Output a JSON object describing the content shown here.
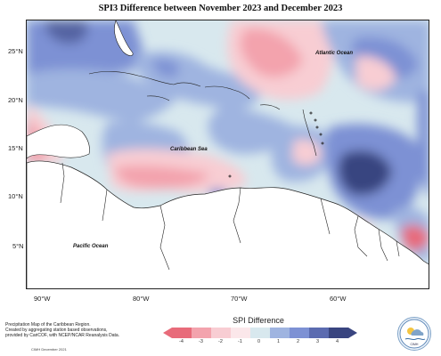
{
  "title": "SPI3 Difference between November 2023 and December 2023",
  "labels": {
    "atlantic": "Atlantic Ocean",
    "caribbean": "Caribbean Sea",
    "pacific": "Pacific Ocean"
  },
  "lat_ticks": [
    "25°N",
    "20°N",
    "15°N",
    "10°N",
    "5°N"
  ],
  "lon_ticks": [
    "90°W",
    "80°W",
    "70°W",
    "60°W"
  ],
  "legend": {
    "title": "SPI Difference",
    "ticks": [
      "-4",
      "-3",
      "-2",
      "-1",
      "0",
      "1",
      "2",
      "3",
      "4"
    ],
    "colors": [
      "#e86b7a",
      "#f3a3ad",
      "#f8cdd3",
      "#fbe7ea",
      "#d8e8ee",
      "#9fb4e0",
      "#7d91d4",
      "#5b6bb0",
      "#394580"
    ]
  },
  "footnote": {
    "lines": [
      "Precipitation Map of the Caribbean Region.",
      "Created by aggregating station based observations,",
      "provided by CariCOF, with NCEP/NCAR Reanalysis Data."
    ],
    "credit": "CIMH December 2021"
  },
  "logo_text": "CIMH"
}
